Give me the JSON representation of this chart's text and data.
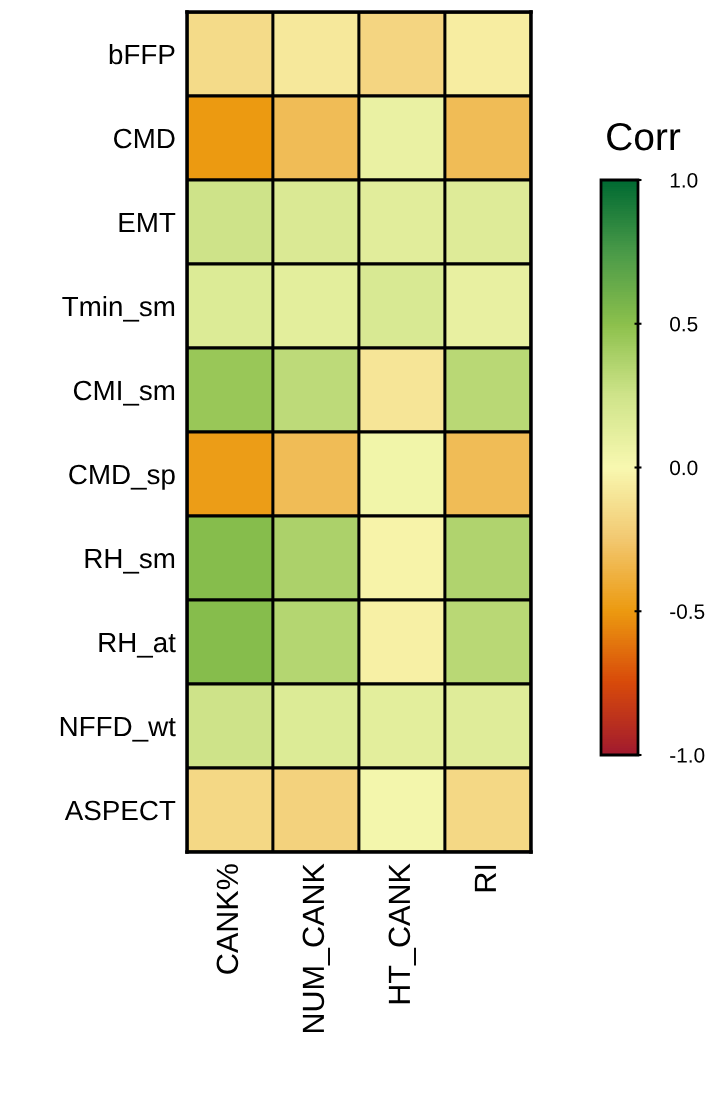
{
  "chart_data": {
    "type": "heatmap",
    "clabel": "Corr",
    "categories": [
      "CANK%",
      "NUM_CANK",
      "HT_CANK",
      "RI"
    ],
    "y_categories": [
      "bFFP",
      "CMD",
      "EMT",
      "Tmin_sm",
      "CMI_sm",
      "CMD_sp",
      "RH_sm",
      "RH_at",
      "NFFD_wt",
      "ASPECT"
    ],
    "cells": [
      [
        -0.15,
        -0.08,
        -0.18,
        -0.06
      ],
      [
        -0.5,
        -0.32,
        0.08,
        -0.32
      ],
      [
        0.25,
        0.18,
        0.14,
        0.16
      ],
      [
        0.17,
        0.13,
        0.19,
        0.1
      ],
      [
        0.45,
        0.32,
        -0.1,
        0.33
      ],
      [
        -0.48,
        -0.32,
        0.04,
        -0.32
      ],
      [
        0.52,
        0.38,
        -0.03,
        0.36
      ],
      [
        0.52,
        0.35,
        -0.04,
        0.33
      ],
      [
        0.25,
        0.17,
        0.13,
        0.15
      ],
      [
        -0.17,
        -0.2,
        0.03,
        -0.17
      ]
    ],
    "clim": [
      -1.0,
      1.0
    ],
    "cticks": [
      {
        "value": 1,
        "label": "1.0"
      },
      {
        "value": 0.5,
        "label": "0.5"
      },
      {
        "value": 0,
        "label": "0.0"
      },
      {
        "value": -0.5,
        "label": "-0.5"
      },
      {
        "value": -1,
        "label": "-1.0"
      }
    ]
  }
}
